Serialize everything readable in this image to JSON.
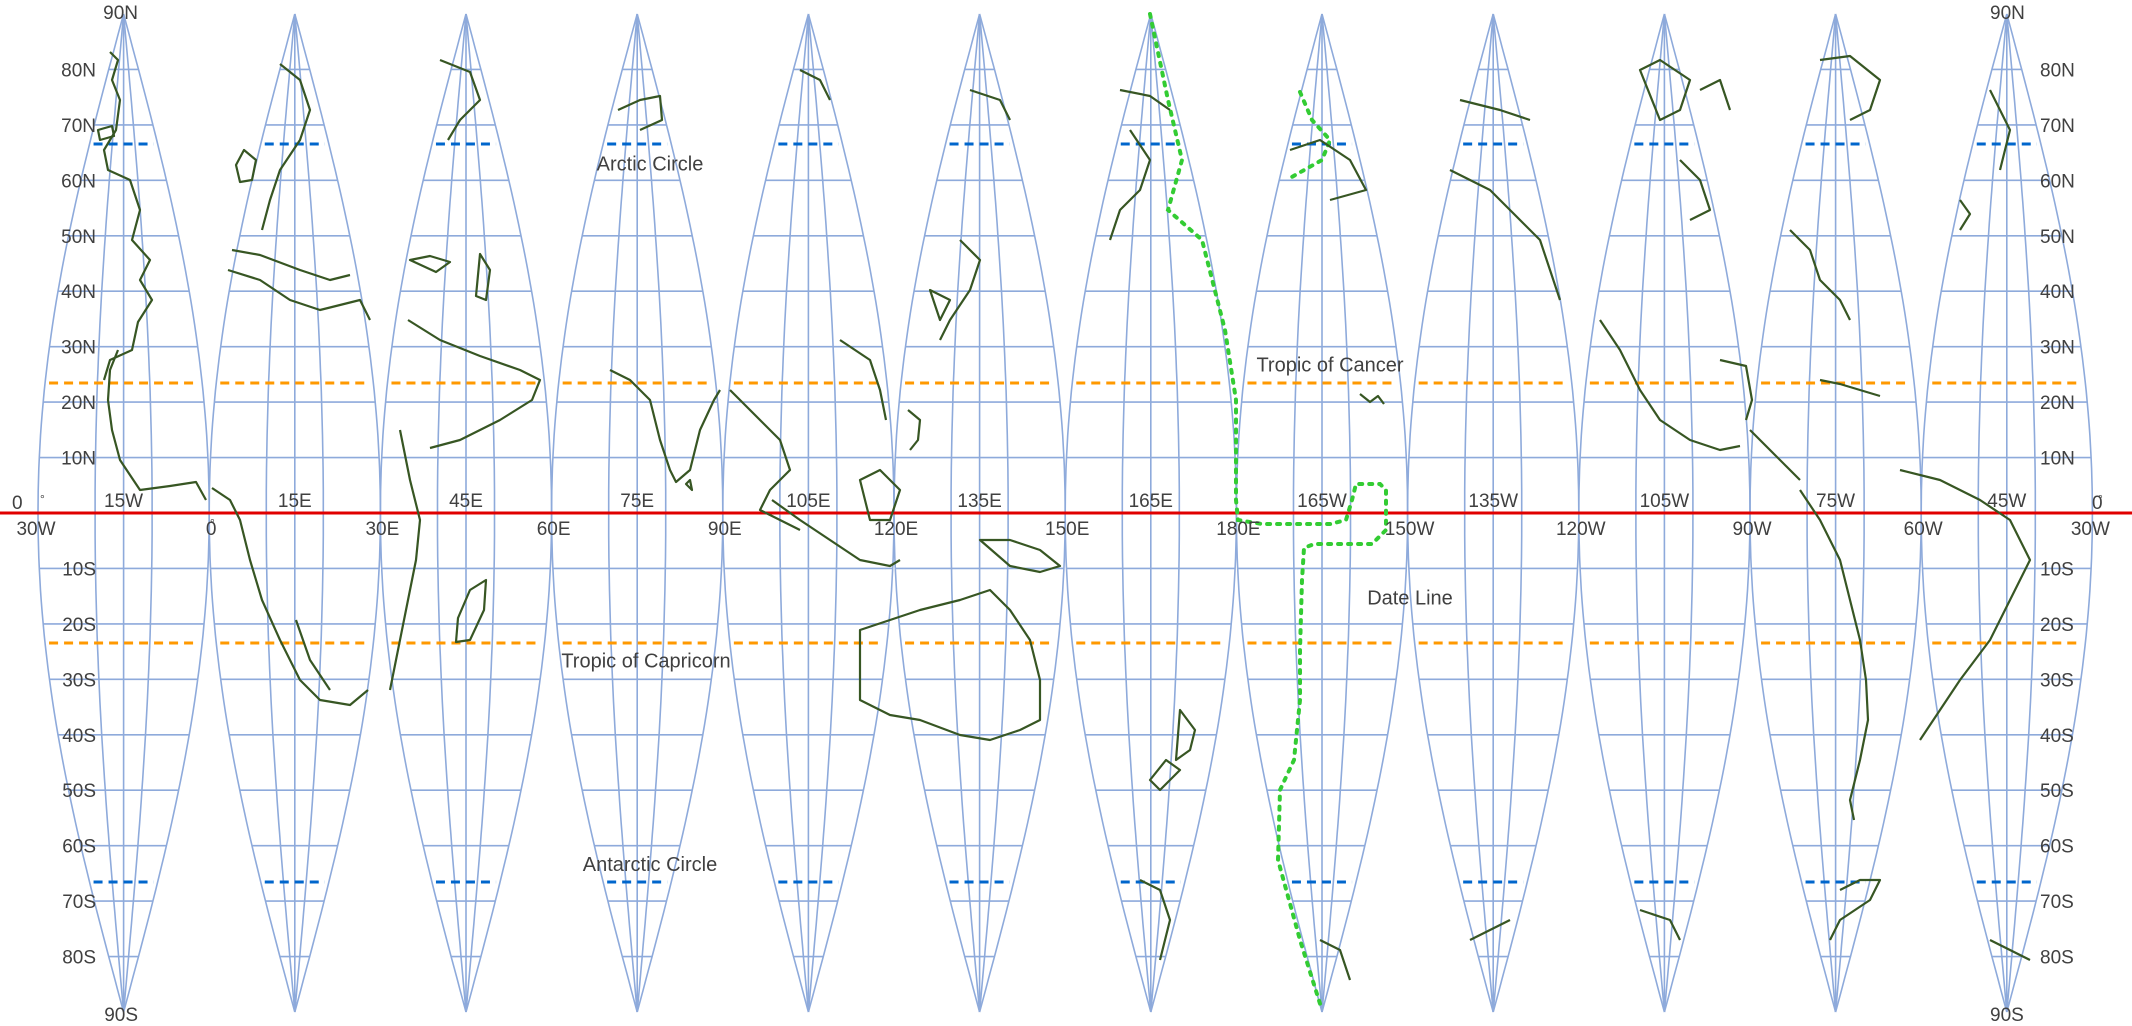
{
  "lat_labels": {
    "left": [
      "90N",
      "80N",
      "70N",
      "60N",
      "50N",
      "40N",
      "30N",
      "20N",
      "10N",
      "0",
      "10S",
      "20S",
      "30S",
      "40S",
      "50S",
      "60S",
      "70S",
      "80S",
      "90S"
    ],
    "right": [
      "90N",
      "80N",
      "70N",
      "60N",
      "50N",
      "40N",
      "30N",
      "20N",
      "10N",
      "0",
      "10S",
      "20S",
      "30S",
      "40S",
      "50S",
      "60S",
      "70S",
      "80S",
      "90S"
    ]
  },
  "central_meridian_labels": [
    "15W",
    "15E",
    "45E",
    "75E",
    "105E",
    "135E",
    "165E",
    "165W",
    "135W",
    "105W",
    "75W",
    "45W"
  ],
  "boundary_labels": [
    "30W",
    "0",
    "30E",
    "60E",
    "90E",
    "120E",
    "150E",
    "180E",
    "150W",
    "120W",
    "90W",
    "60W",
    "30W"
  ],
  "degree_symbols": [
    "°",
    "°",
    "°"
  ],
  "feature_labels": {
    "arctic_circle": "Arctic Circle",
    "tropic_of_cancer": "Tropic of Cancer",
    "tropic_of_capricorn": "Tropic of Capricorn",
    "antarctic_circle": "Antarctic Circle",
    "date_line": "Date Line"
  },
  "map_data": {
    "projection": "interrupted sinusoidal gores, 12 gores of 30 degrees",
    "graticule_interval_deg": 10,
    "special_parallels": [
      {
        "name": "Arctic Circle",
        "lat": 66.56
      },
      {
        "name": "Tropic of Cancer",
        "lat": 23.44
      },
      {
        "name": "Equator",
        "lat": 0
      },
      {
        "name": "Tropic of Capricorn",
        "lat": -23.44
      },
      {
        "name": "Antarctic Circle",
        "lat": -66.56
      }
    ]
  },
  "colors": {
    "graticule": "#8eaadb",
    "coastline": "#375623",
    "equator": "#e00000",
    "tropics": "#ff9900",
    "polar_circles": "#0066cc",
    "date_line": "#33cc33",
    "text": "#404040"
  }
}
